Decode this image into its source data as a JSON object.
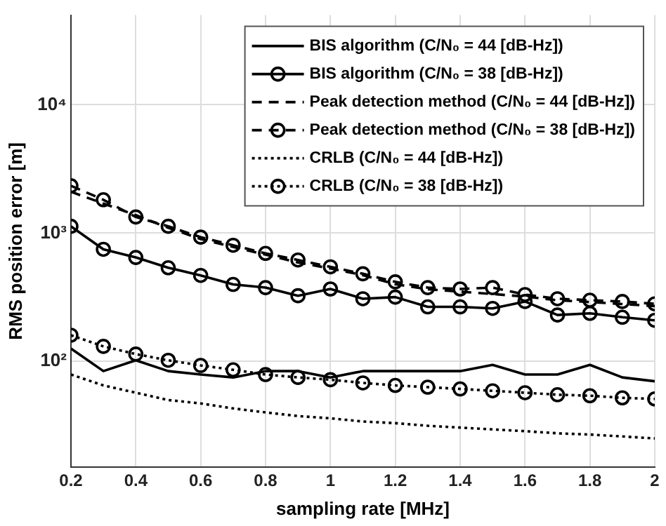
{
  "chart_data": {
    "type": "line",
    "xlabel": "sampling rate [MHz]",
    "ylabel": "RMS position error [m]",
    "x": [
      0.2,
      0.3,
      0.4,
      0.5,
      0.6,
      0.7,
      0.8,
      0.9,
      1.0,
      1.1,
      1.2,
      1.3,
      1.4,
      1.5,
      1.6,
      1.7,
      1.8,
      1.9,
      2.0
    ],
    "series": [
      {
        "name": "BIS algorithm (C/N₀ = 44 [dB-Hz])",
        "color": "#000000",
        "marker": "none",
        "line_style": "solid",
        "values": [
          126,
          84,
          102,
          84,
          79,
          75,
          84,
          84,
          75,
          84,
          84,
          84,
          84,
          94,
          79,
          79,
          94,
          75,
          70
        ]
      },
      {
        "name": "BIS algorithm (C/N₀ = 38 [dB-Hz])",
        "color": "#000000",
        "marker": "circle",
        "line_style": "solid",
        "values": [
          1130,
          748,
          646,
          537,
          468,
          398,
          376,
          325,
          367,
          308,
          317,
          266,
          266,
          259,
          293,
          230,
          237,
          221,
          209
        ]
      },
      {
        "name": "Peak detection method (C/N₀ = 44 [dB-Hz])",
        "color": "#000000",
        "marker": "none",
        "line_style": "dashed",
        "values": [
          2100,
          1700,
          1380,
          1100,
          900,
          780,
          680,
          590,
          530,
          470,
          400,
          365,
          350,
          335,
          320,
          300,
          290,
          280,
          270
        ]
      },
      {
        "name": "Peak detection method (C/N₀ = 38 [dB-Hz])",
        "color": "#000000",
        "marker": "circle",
        "line_style": "dashed",
        "values": [
          2340,
          1820,
          1336,
          1130,
          930,
          804,
          695,
          617,
          546,
          482,
          417,
          376,
          367,
          376,
          332,
          308,
          300,
          293,
          281
        ]
      },
      {
        "name": "CRLB (C/N₀ = 44 [dB-Hz])",
        "color": "#000000",
        "marker": "none",
        "line_style": "dotted",
        "values": [
          79,
          65,
          57,
          50,
          47,
          43,
          40,
          37.5,
          36,
          34,
          33,
          31.5,
          30.5,
          29.5,
          28.6,
          27.5,
          26.9,
          26,
          25.1
        ]
      },
      {
        "name": "CRLB (C/N₀ = 38 [dB-Hz])",
        "color": "#000000",
        "marker": "circle",
        "line_style": "dotted",
        "values": [
          160,
          131,
          114,
          102,
          93,
          86,
          79,
          75,
          72,
          68,
          65,
          63,
          61,
          59,
          57,
          55,
          54,
          52,
          51
        ]
      }
    ],
    "xlim": [
      0.2,
      2
    ],
    "xticks": [
      0.2,
      0.4,
      0.6,
      0.8,
      1,
      1.2,
      1.4,
      1.6,
      1.8,
      2
    ],
    "ylim": [
      15,
      50000
    ],
    "yticks": [
      {
        "value": 100,
        "label": "10²"
      },
      {
        "value": 1000,
        "label": "10³"
      },
      {
        "value": 10000,
        "label": "10⁴"
      }
    ],
    "log": "y",
    "grid": true,
    "legend": "top right"
  }
}
